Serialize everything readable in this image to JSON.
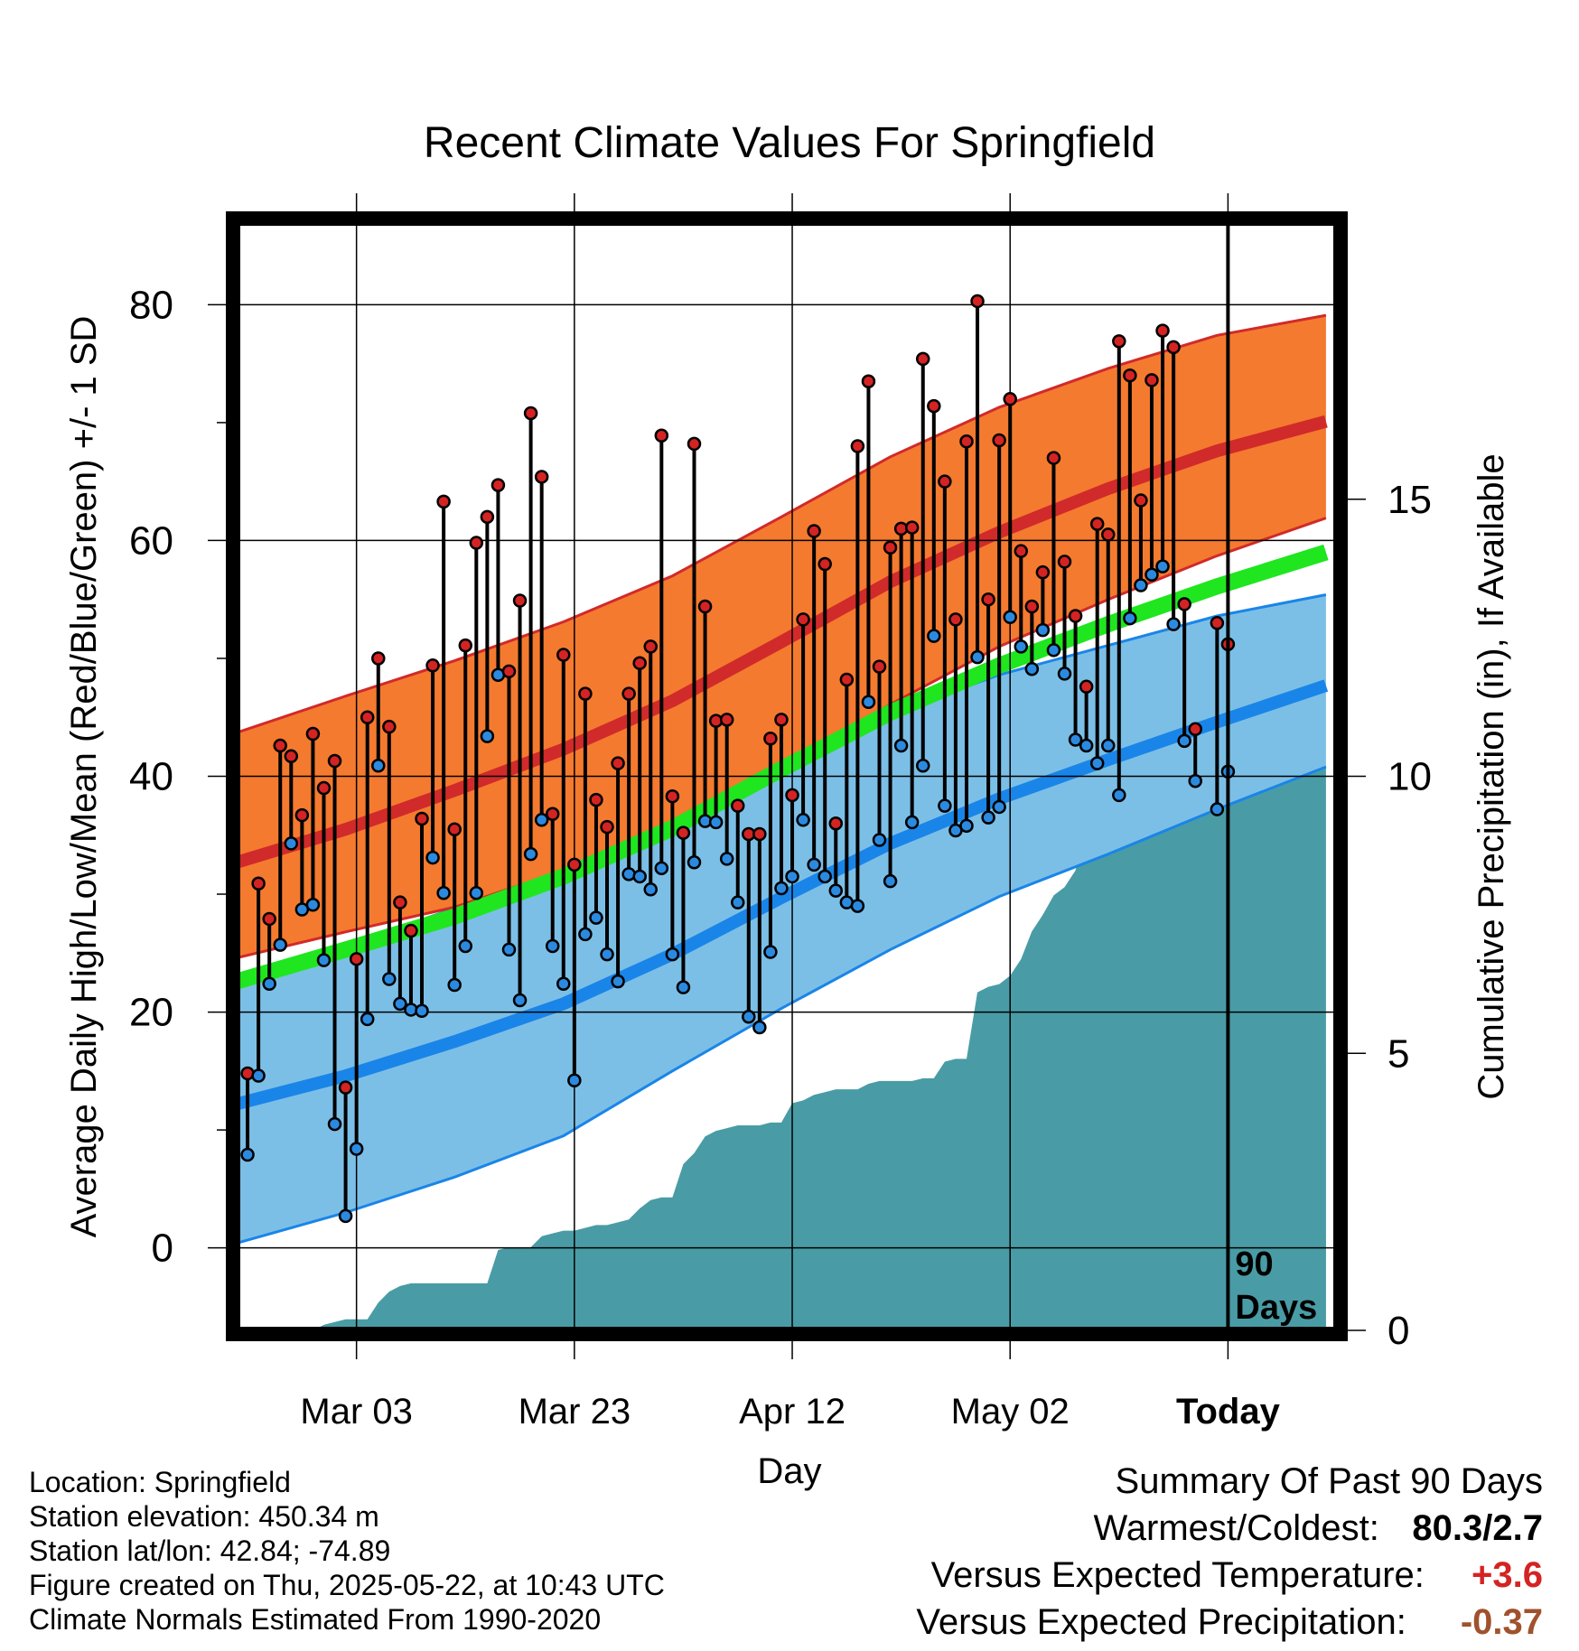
{
  "chart_data": {
    "type": "line",
    "title": "Recent Climate Values For Springfield",
    "xlabel": "Day",
    "ylabel_left": "Average Daily High/Low/Mean (Red/Blue/Green) +/- 1 SD",
    "ylabel_right": "Cumulative Precipitation (in), If Available",
    "y_left_range": [
      -7,
      87
    ],
    "y_right_range": [
      0,
      20
    ],
    "y_left_ticks": [
      "0",
      "20",
      "40",
      "60",
      "80"
    ],
    "y_right_ticks": [
      "0",
      "5",
      "10",
      "15"
    ],
    "x_ticks": [
      {
        "day": 10,
        "label": "Mar 03"
      },
      {
        "day": 30,
        "label": "Mar 23"
      },
      {
        "day": 50,
        "label": "Apr 12"
      },
      {
        "day": 70,
        "label": "May 02"
      },
      {
        "day": 90,
        "label": "Today"
      }
    ],
    "x_range": [
      -1,
      100
    ],
    "today_day": 90,
    "today_label": [
      "90",
      "Days"
    ],
    "grid": true,
    "colors": {
      "high_band": "#f47a2f",
      "high_line": "#d12a2a",
      "high_edge": "#d12a2a",
      "low_band": "#7cbfe6",
      "low_line": "#1a85e8",
      "low_edge": "#1a85e8",
      "mean_line": "#1fe61f",
      "precip": "#499ca5",
      "high_dot": "#d42323",
      "low_dot": "#2b8ae0"
    },
    "normals": {
      "days": [
        -1,
        9,
        19,
        29,
        39,
        49,
        59,
        69,
        79,
        89,
        99
      ],
      "high_mean": [
        32.7,
        35.5,
        38.8,
        42.3,
        46.4,
        51.4,
        56.5,
        60.7,
        64.4,
        67.6,
        70.1
      ],
      "high_sd_upper": [
        43.7,
        46.8,
        49.8,
        53.1,
        57.0,
        62.0,
        67.1,
        71.3,
        74.6,
        77.4,
        79.1
      ],
      "high_sd_lower": [
        24.6,
        26.8,
        28.9,
        32.0,
        35.7,
        40.6,
        46.1,
        51.0,
        55.0,
        58.7,
        61.9
      ],
      "low_mean": [
        12.2,
        14.6,
        17.5,
        20.7,
        24.9,
        29.7,
        34.3,
        38.1,
        41.4,
        44.6,
        47.7
      ],
      "low_sd_upper": [
        22.5,
        25.6,
        28.8,
        32.5,
        37.2,
        41.4,
        45.3,
        48.6,
        51.1,
        53.6,
        55.4
      ],
      "low_sd_lower": [
        0.4,
        3.0,
        6.0,
        9.5,
        15.0,
        20.3,
        25.3,
        29.8,
        33.4,
        37.2,
        40.8
      ],
      "mean": [
        22.6,
        25.3,
        28.1,
        31.5,
        35.6,
        40.6,
        45.4,
        49.4,
        52.9,
        56.1,
        59.0
      ]
    },
    "daily": {
      "days": [
        0,
        1,
        2,
        3,
        4,
        5,
        6,
        7,
        8,
        9,
        10,
        11,
        12,
        13,
        14,
        15,
        16,
        17,
        18,
        19,
        20,
        21,
        22,
        23,
        24,
        25,
        26,
        27,
        28,
        29,
        30,
        31,
        32,
        33,
        34,
        35,
        36,
        37,
        38,
        39,
        40,
        41,
        42,
        43,
        44,
        45,
        46,
        47,
        48,
        49,
        50,
        51,
        52,
        53,
        54,
        55,
        56,
        57,
        58,
        59,
        60,
        61,
        62,
        63,
        64,
        65,
        66,
        67,
        68,
        69,
        70,
        71,
        72,
        73,
        74,
        75,
        76,
        77,
        78,
        79,
        80,
        81,
        82,
        83,
        84,
        85,
        86,
        87,
        88,
        89,
        90
      ],
      "high": [
        14.8,
        30.9,
        27.9,
        42.6,
        41.7,
        36.7,
        43.6,
        39.0,
        41.3,
        13.6,
        24.5,
        45.0,
        50.0,
        44.2,
        29.3,
        26.9,
        36.4,
        49.4,
        63.3,
        35.5,
        51.1,
        59.8,
        62.0,
        64.7,
        48.9,
        54.9,
        70.8,
        65.4,
        36.8,
        50.3,
        32.5,
        47.0,
        38.0,
        35.7,
        41.1,
        47.0,
        49.6,
        51.0,
        68.9,
        38.3,
        35.2,
        68.2,
        54.4,
        44.7,
        44.8,
        37.5,
        35.1,
        35.1,
        43.2,
        44.8,
        38.4,
        53.3,
        60.8,
        58.0,
        36.0,
        48.2,
        68.0,
        73.5,
        49.3,
        59.4,
        61.0,
        61.1,
        75.4,
        71.4,
        65.0,
        53.3,
        68.4,
        80.3,
        55.0,
        68.5,
        72.0,
        59.1,
        54.4,
        57.3,
        67.0,
        58.2,
        53.6,
        47.6,
        61.4,
        60.5,
        76.9,
        74.0,
        63.4,
        73.6,
        77.8,
        76.4,
        54.6,
        44.0,
        null,
        53.0,
        51.2
      ],
      "low": [
        7.9,
        14.6,
        22.4,
        25.7,
        34.3,
        28.7,
        29.1,
        24.4,
        10.5,
        2.7,
        8.4,
        19.4,
        40.9,
        22.8,
        20.7,
        20.2,
        20.1,
        33.1,
        30.1,
        22.3,
        25.6,
        30.1,
        43.4,
        48.6,
        25.3,
        21.0,
        33.4,
        36.3,
        25.6,
        22.4,
        14.2,
        26.6,
        28.0,
        24.9,
        22.6,
        31.7,
        31.5,
        30.4,
        32.2,
        24.9,
        22.1,
        32.7,
        36.2,
        36.1,
        33.0,
        29.3,
        19.6,
        18.7,
        25.1,
        30.5,
        31.5,
        36.3,
        32.5,
        31.5,
        30.3,
        29.3,
        29.0,
        46.3,
        34.6,
        31.1,
        42.6,
        36.1,
        40.9,
        51.9,
        37.5,
        35.4,
        35.8,
        50.1,
        36.5,
        37.4,
        53.5,
        51.0,
        49.1,
        52.4,
        50.7,
        48.7,
        43.1,
        42.6,
        41.1,
        42.6,
        38.4,
        53.4,
        56.2,
        57.1,
        57.8,
        52.9,
        43.0,
        39.6,
        null,
        37.2,
        40.4
      ]
    },
    "precip_cumulative": {
      "days": [
        -1,
        6,
        7,
        8,
        9,
        10,
        11,
        12,
        13,
        14,
        15,
        16,
        17,
        18,
        19,
        20,
        21,
        22,
        23,
        24,
        25,
        26,
        27,
        28,
        29,
        30,
        31,
        32,
        33,
        34,
        35,
        36,
        37,
        38,
        39,
        40,
        41,
        42,
        43,
        44,
        45,
        46,
        47,
        48,
        49,
        50,
        51,
        52,
        53,
        54,
        55,
        56,
        57,
        58,
        59,
        60,
        61,
        62,
        63,
        64,
        65,
        66,
        67,
        68,
        69,
        70,
        71,
        72,
        73,
        74,
        75,
        76,
        77,
        78,
        79,
        80,
        81,
        82,
        83,
        84,
        85,
        86,
        87,
        88,
        89,
        99
      ],
      "values": [
        0,
        0,
        0.1,
        0.15,
        0.2,
        0.2,
        0.2,
        0.5,
        0.7,
        0.8,
        0.85,
        0.85,
        0.85,
        0.85,
        0.85,
        0.85,
        0.85,
        0.85,
        1.45,
        1.5,
        1.5,
        1.5,
        1.7,
        1.75,
        1.8,
        1.8,
        1.85,
        1.9,
        1.9,
        1.95,
        2.0,
        2.2,
        2.35,
        2.4,
        2.4,
        3.0,
        3.2,
        3.5,
        3.6,
        3.65,
        3.7,
        3.7,
        3.7,
        3.75,
        3.75,
        4.1,
        4.15,
        4.25,
        4.3,
        4.35,
        4.35,
        4.35,
        4.45,
        4.5,
        4.5,
        4.5,
        4.5,
        4.55,
        4.55,
        4.85,
        4.9,
        4.9,
        6.1,
        6.2,
        6.25,
        6.4,
        6.7,
        7.2,
        7.5,
        7.85,
        8.0,
        8.3,
        9.05,
        9.1,
        9.1,
        9.1,
        9.1,
        9.5,
        9.55,
        9.75,
        10.0,
        10.05,
        10.15,
        10.2,
        10.2,
        10.2
      ]
    }
  },
  "info": {
    "location": "Location: Springfield",
    "elevation": "Station elevation: 450.34 m",
    "latlon": "Station lat/lon: 42.84; -74.89",
    "created": "Figure created on Thu, 2025-05-22, at 10:43 UTC",
    "normals": "Climate Normals Estimated From 1990-2020"
  },
  "summary": {
    "title": "Summary Of Past 90 Days",
    "warm_cold_label": "Warmest/Coldest:",
    "warm_cold_value": "80.3/2.7",
    "temp_label": "Versus Expected Temperature:",
    "temp_value": "+3.6",
    "temp_color": "#d42323",
    "precip_label": "Versus Expected Precipitation:",
    "precip_value": "-0.37",
    "precip_color": "#a0522d"
  }
}
